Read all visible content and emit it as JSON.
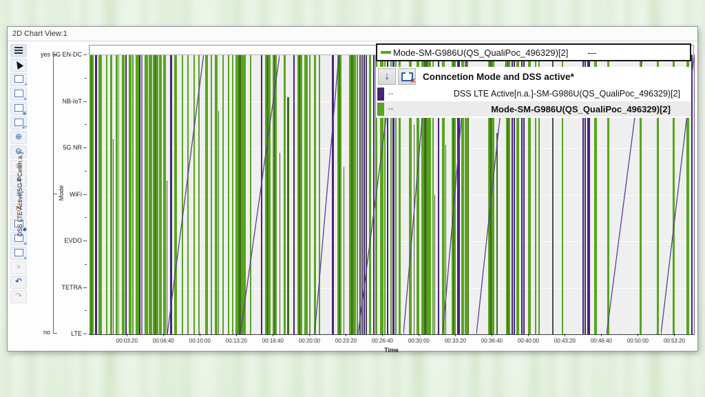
{
  "window": {
    "title": "2D Chart View:1"
  },
  "toolbar": {
    "items": [
      {
        "name": "menu",
        "kind": "menu"
      },
      {
        "name": "pointer",
        "kind": "cursor"
      },
      {
        "name": "select-lock",
        "kind": "rect",
        "badge": "•"
      },
      {
        "name": "select-add",
        "kind": "rect",
        "badge": "+"
      },
      {
        "name": "zoom-selection",
        "kind": "rect",
        "badge": "⊕"
      },
      {
        "name": "revert-selection",
        "kind": "rect",
        "badge": "↶"
      },
      {
        "name": "zoom-in",
        "glyph": "⊕"
      },
      {
        "name": "zoom-out",
        "glyph": "⊖"
      },
      {
        "name": "zoom-reset",
        "glyph": "⊕",
        "disabled": true
      },
      {
        "name": "autoscale-y",
        "glyph": "≈",
        "variant": "dark"
      },
      {
        "name": "autoscale-x",
        "glyph": "≈"
      },
      {
        "name": "refresh",
        "glyph": "↻",
        "variant": "orange"
      },
      {
        "name": "layout",
        "kind": "rect",
        "badge": "◆"
      },
      {
        "name": "legend-toggle",
        "kind": "rect",
        "badge": "≡"
      },
      {
        "name": "add-chart",
        "kind": "rect",
        "badge": "+"
      },
      {
        "name": "delete-signal",
        "glyph": "×",
        "disabled": true
      },
      {
        "name": "undo",
        "glyph": "↶",
        "variant": "dark"
      },
      {
        "name": "redo",
        "glyph": "↷",
        "disabled": true
      }
    ]
  },
  "axes": {
    "left_axis": {
      "label": "DSS LTE Active[5G-PCell/n.a.]",
      "top": "yes",
      "bottom": "no"
    },
    "mode_axis": {
      "label": "Mode",
      "categories": [
        "5G EN-DC",
        "NB-IoT",
        "5G NR",
        "WiFi",
        "EVDO",
        "TETRA",
        "LTE"
      ]
    },
    "x_axis": {
      "label": "Time",
      "first_pct": 6.3,
      "step_pct": 6.03,
      "ticks": [
        "00:03:20",
        "00:06:40",
        "00:10:00",
        "00:13:20",
        "00:16:40",
        "00:20:00",
        "00:23:20",
        "00:26:40",
        "00:30:00",
        "00:33:20",
        "00:36:40",
        "00:40:00",
        "00:43:20",
        "00:46:40",
        "00:50:00",
        "00:53:20"
      ]
    }
  },
  "legend_top": {
    "text": "Mode-SM-G986U(QS_QualiPoc_496329)[2]",
    "suffix": "---",
    "swatch_color": "#57a51f"
  },
  "legend_panel": {
    "title": "Conncetion Mode and DSS active*",
    "rows": [
      {
        "color": "#46257b",
        "dash": "--",
        "label": "DSS LTE Active[n.a.]-SM-G986U(QS_QualiPoc_496329)[2]",
        "bold": false
      },
      {
        "color": "#57a51f",
        "dash": "--",
        "label": "Mode-SM-G986U(QS_QualiPoc_496329)[2]",
        "bold": true
      }
    ]
  },
  "chart_data": {
    "type": "status-timeline",
    "title": "Conncetion Mode and DSS active*",
    "xlabel": "Time",
    "x_range": [
      "00:00:00",
      "00:55:30"
    ],
    "y_axes": [
      {
        "name": "DSS LTE Active[5G-PCell/n.a.]",
        "values": [
          "no",
          "yes"
        ]
      },
      {
        "name": "Mode",
        "categories": [
          "5G EN-DC",
          "NB-IoT",
          "5G NR",
          "WiFi",
          "EVDO",
          "TETRA",
          "LTE"
        ]
      }
    ],
    "series": [
      {
        "name": "DSS LTE Active[n.a.]-SM-G986U(QS_QualiPoc_496329)[2]",
        "color": "#46257b"
      },
      {
        "name": "Mode-SM-G986U(QS_QualiPoc_496329)[2]",
        "color": "#57a51f"
      }
    ],
    "colors": {
      "g": "#57a51f",
      "d": "#3e6b1c",
      "p": "#46257b",
      "lp": "#8e68b4",
      "k": "#4a4a55",
      "diag": "#5d3d91",
      "grid": "#ffffff",
      "plot_bg": "#efefef"
    },
    "bars": [
      [
        0.1,
        6,
        "g"
      ],
      [
        1.0,
        3,
        "p"
      ],
      [
        1.6,
        5,
        "g"
      ],
      [
        2.8,
        2,
        "g"
      ],
      [
        3.5,
        3,
        "g"
      ],
      [
        4.0,
        1,
        "d",
        70
      ],
      [
        4.4,
        3,
        "g"
      ],
      [
        4.9,
        1,
        "g"
      ],
      [
        5.5,
        4,
        "g"
      ],
      [
        6.0,
        2,
        "p"
      ],
      [
        6.6,
        4,
        "g"
      ],
      [
        7.2,
        2,
        "g"
      ],
      [
        7.7,
        5,
        "g"
      ],
      [
        8.3,
        2,
        "p"
      ],
      [
        8.6,
        2,
        "lp"
      ],
      [
        9.2,
        5,
        "g"
      ],
      [
        9.9,
        5,
        "g"
      ],
      [
        10.6,
        8,
        "g"
      ],
      [
        11.6,
        4,
        "g"
      ],
      [
        12.3,
        4,
        "g"
      ],
      [
        12.9,
        1,
        "d",
        55
      ],
      [
        13.4,
        3,
        "p"
      ],
      [
        14.1,
        4,
        "g"
      ],
      [
        15.4,
        2,
        "g"
      ],
      [
        16.3,
        2,
        "g"
      ],
      [
        17.3,
        2,
        "g"
      ],
      [
        18.1,
        2,
        "g"
      ],
      [
        19.2,
        4,
        "g"
      ],
      [
        20.1,
        2,
        "g"
      ],
      [
        20.8,
        4,
        "g"
      ],
      [
        21.4,
        1,
        "d",
        80
      ],
      [
        22.1,
        2,
        "g"
      ],
      [
        23.0,
        2,
        "g"
      ],
      [
        23.7,
        2,
        "g"
      ],
      [
        24.2,
        15,
        "g"
      ],
      [
        26.6,
        2,
        "g"
      ],
      [
        28.4,
        2,
        "p"
      ],
      [
        29.1,
        8,
        "g"
      ],
      [
        30.4,
        6,
        "g"
      ],
      [
        31.5,
        1,
        "d",
        65
      ],
      [
        32.2,
        3,
        "g"
      ],
      [
        32.8,
        3,
        "d",
        85
      ],
      [
        33.8,
        2,
        "p"
      ],
      [
        34.5,
        7,
        "g"
      ],
      [
        35.6,
        5,
        "g"
      ],
      [
        36.4,
        2,
        "g"
      ],
      [
        37.2,
        3,
        "g"
      ],
      [
        38.0,
        2,
        "g"
      ],
      [
        40.2,
        3,
        "p"
      ],
      [
        41.1,
        6,
        "g"
      ],
      [
        42.1,
        1,
        "d",
        60
      ],
      [
        43.0,
        10,
        "g"
      ],
      [
        44.3,
        2,
        "g"
      ],
      [
        44.7,
        2,
        "k"
      ],
      [
        45.1,
        2,
        "k"
      ],
      [
        45.4,
        2,
        "p"
      ],
      [
        45.7,
        2,
        "k"
      ],
      [
        46.3,
        3,
        "g"
      ],
      [
        47.0,
        2,
        "p"
      ],
      [
        47.3,
        3,
        "g"
      ],
      [
        48.1,
        5,
        "g"
      ],
      [
        48.8,
        2,
        "g"
      ],
      [
        49.3,
        2,
        "p"
      ],
      [
        49.8,
        2,
        "g"
      ],
      [
        50.2,
        3,
        "p"
      ],
      [
        50.6,
        2,
        "g"
      ],
      [
        51.2,
        3,
        "g"
      ],
      [
        52.9,
        4,
        "g"
      ],
      [
        53.7,
        1,
        "d",
        75
      ],
      [
        54.2,
        4,
        "g"
      ],
      [
        55.0,
        14,
        "g"
      ],
      [
        56.8,
        2,
        "g"
      ],
      [
        57.1,
        1,
        "d",
        50
      ],
      [
        57.7,
        2,
        "p"
      ],
      [
        58.4,
        4,
        "g"
      ],
      [
        58.9,
        1,
        "d",
        68
      ],
      [
        60.0,
        6,
        "g"
      ],
      [
        60.9,
        4,
        "p"
      ],
      [
        61.5,
        4,
        "g"
      ],
      [
        62.1,
        5,
        "g"
      ],
      [
        62.7,
        1,
        "d",
        82
      ],
      [
        66.0,
        9,
        "g"
      ],
      [
        67.3,
        2,
        "d",
        72
      ],
      [
        68.9,
        6,
        "g"
      ],
      [
        69.9,
        2,
        "p"
      ],
      [
        70.2,
        2,
        "p"
      ],
      [
        70.6,
        4,
        "g"
      ],
      [
        71.4,
        2,
        "p"
      ],
      [
        71.8,
        2,
        "p"
      ],
      [
        72.6,
        4,
        "g"
      ],
      [
        73.7,
        2,
        "g"
      ],
      [
        74.3,
        2,
        "g"
      ],
      [
        76.6,
        2,
        "k"
      ],
      [
        78.2,
        2,
        "g"
      ],
      [
        81.6,
        2,
        "p"
      ],
      [
        81.9,
        2,
        "p"
      ],
      [
        82.4,
        4,
        "p"
      ],
      [
        83.5,
        4,
        "g"
      ],
      [
        85.7,
        3,
        "g"
      ],
      [
        91.0,
        3,
        "g"
      ],
      [
        93.9,
        3,
        "g"
      ],
      [
        96.5,
        3,
        "g"
      ],
      [
        98.7,
        4,
        "g"
      ],
      [
        99.6,
        2,
        "p"
      ]
    ],
    "diagonals": [
      [
        13,
        19
      ],
      [
        25,
        31.5
      ],
      [
        37.3,
        41.3
      ],
      [
        44.5,
        50.5
      ],
      [
        52,
        56
      ],
      [
        58.5,
        62.5
      ],
      [
        64,
        69
      ],
      [
        85.5,
        91.5
      ],
      [
        94.5,
        100
      ]
    ]
  }
}
